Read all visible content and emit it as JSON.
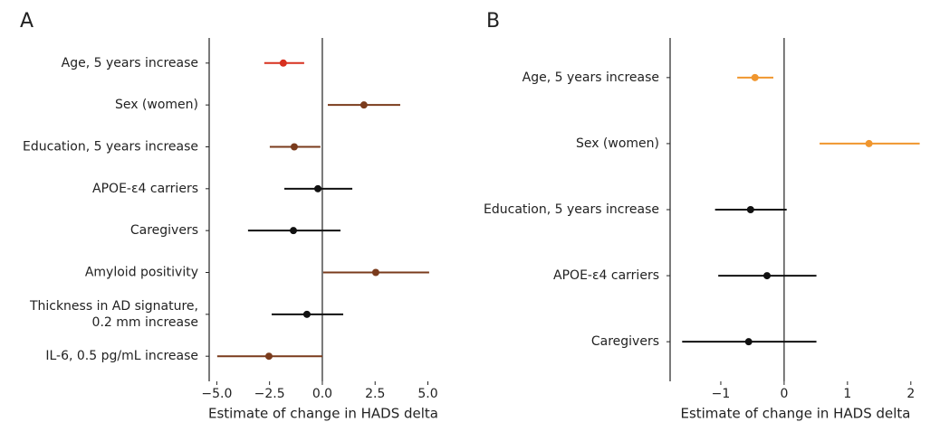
{
  "chart_data": [
    {
      "type": "forest",
      "title": "A",
      "x_label": "Estimate of change in HADS delta",
      "categories": [
        "Age, 5 years increase",
        "Sex (women)",
        "Education, 5 years increase",
        "APOE-ε4 carriers",
        "Caregivers",
        "Amyloid positivity",
        "Thickness in AD signature,\n0.2 mm increase",
        "IL-6, 0.5 pg/mL increase"
      ],
      "values": [
        -1.85,
        1.97,
        -1.33,
        -0.21,
        -1.37,
        2.53,
        -0.73,
        -2.53
      ],
      "lower": [
        -2.75,
        0.26,
        -2.49,
        -1.8,
        -3.52,
        0.04,
        -2.4,
        -4.98
      ],
      "upper": [
        -0.86,
        3.69,
        -0.09,
        1.42,
        0.86,
        5.06,
        0.99,
        0.0
      ],
      "colors": [
        "#d7301f",
        "#7a3b1c",
        "#7a3b1c",
        "#111111",
        "#111111",
        "#7a3b1c",
        "#111111",
        "#7a3b1c"
      ],
      "xlim": [
        -5.36,
        5.45
      ],
      "xticks": [
        {
          "value": -5,
          "label": "−5.0"
        },
        {
          "value": -2.5,
          "label": "−2.5"
        },
        {
          "value": 0,
          "label": "0.0"
        },
        2.5,
        {
          "value": 5,
          "label": "5.0"
        }
      ]
    },
    {
      "type": "forest",
      "title": "B",
      "x_label": "Estimate of change in HADS delta",
      "categories": [
        "Age, 5 years increase",
        "Sex (women)",
        "Education, 5 years increase",
        "APOE-ε4 carriers",
        "Caregivers"
      ],
      "values": [
        -0.46,
        1.34,
        -0.53,
        -0.27,
        -0.56
      ],
      "lower": [
        -0.74,
        0.56,
        -1.09,
        -1.04,
        -1.61
      ],
      "upper": [
        -0.17,
        2.14,
        0.04,
        0.51,
        0.51
      ],
      "colors": [
        "#f0962e",
        "#f0962e",
        "#111111",
        "#111111",
        "#111111"
      ],
      "xlim": [
        -1.8,
        2.16
      ],
      "xticks": [
        {
          "value": -1,
          "label": "−1"
        },
        0,
        1,
        2
      ]
    }
  ]
}
